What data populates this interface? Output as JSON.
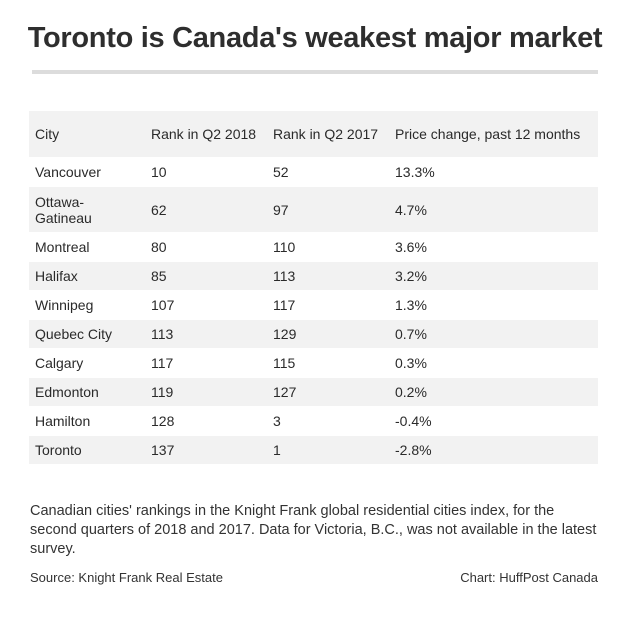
{
  "title": "Toronto is Canada's weakest major market",
  "chart_data": {
    "type": "table",
    "columns": [
      "City",
      "Rank in Q2 2018",
      "Rank in Q2 2017",
      "Price change, past 12 months"
    ],
    "rows": [
      [
        "Vancouver",
        "10",
        "52",
        "13.3%"
      ],
      [
        "Ottawa-Gatineau",
        "62",
        "97",
        "4.7%"
      ],
      [
        "Montreal",
        "80",
        "110",
        "3.6%"
      ],
      [
        "Halifax",
        "85",
        "113",
        "3.2%"
      ],
      [
        "Winnipeg",
        "107",
        "117",
        "1.3%"
      ],
      [
        "Quebec City",
        "113",
        "129",
        "0.7%"
      ],
      [
        "Calgary",
        "117",
        "115",
        "0.3%"
      ],
      [
        "Edmonton",
        "119",
        "127",
        "0.2%"
      ],
      [
        "Hamilton",
        "128",
        "3",
        "-0.4%"
      ],
      [
        "Toronto",
        "137",
        "1",
        "-2.8%"
      ]
    ]
  },
  "caption": "Canadian cities' rankings in the Knight Frank global residential cities index, for the second quarters of 2018 and 2017. Data for Victoria, B.C., was not available in the latest survey.",
  "source": "Source: Knight Frank Real Estate",
  "credit": "Chart: HuffPost Canada",
  "colors": {
    "header_row": "#f2f2f2",
    "alt_row": "#f2f2f2",
    "rule": "#dcdcdc"
  }
}
